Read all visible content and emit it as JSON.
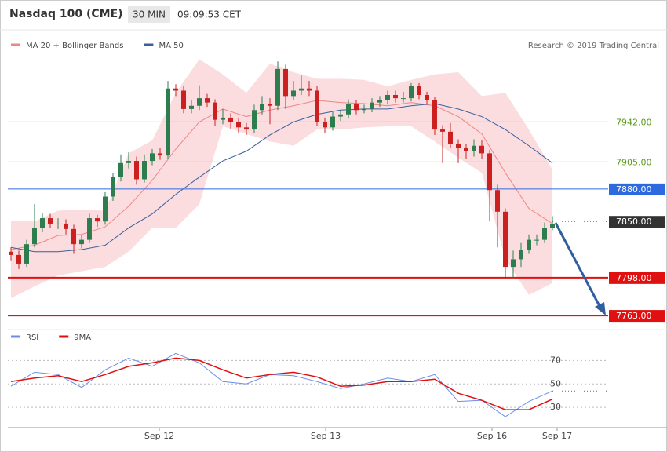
{
  "header": {
    "title": "Nasdaq 100 (CME)",
    "interval": "30 MIN",
    "time": "09:09:53 CET",
    "credit": "Research © 2019 Trading Central"
  },
  "chart_data": [
    {
      "type": "candlestick",
      "open": [
        7822,
        7819,
        7811,
        7829,
        7844,
        7853,
        7848,
        7848,
        7843,
        7829,
        7833,
        7853,
        7850,
        7873,
        7891,
        7904,
        7906,
        7889,
        7906,
        7913,
        7911,
        7973,
        7971,
        7954,
        7957,
        7964,
        7960,
        7944,
        7946,
        7942,
        7937,
        7935,
        7953,
        7959,
        7957,
        7991,
        7966,
        7971,
        7973,
        7971,
        7942,
        7937,
        7947,
        7949,
        7959,
        7953,
        7954,
        7960,
        7962,
        7967,
        7964,
        7964,
        7975,
        7967,
        7962,
        7935,
        7933,
        7922,
        7918,
        7915,
        7920,
        7913,
        7879,
        7859,
        7808,
        7815,
        7824,
        7833,
        7833,
        7844
      ],
      "high": [
        7826,
        7823,
        7833,
        7866,
        7858,
        7857,
        7853,
        7852,
        7847,
        7837,
        7857,
        7856,
        7877,
        7895,
        7912,
        7914,
        7910,
        7912,
        7917,
        7918,
        7980,
        7977,
        7975,
        7962,
        7976,
        7968,
        7963,
        7954,
        7950,
        7946,
        7941,
        7958,
        7966,
        7964,
        7998,
        7995,
        7980,
        7985,
        7980,
        7975,
        7946,
        7951,
        7953,
        7963,
        7962,
        7958,
        7964,
        7966,
        7971,
        7971,
        7970,
        7978,
        7978,
        7970,
        7965,
        7939,
        7941,
        7926,
        7922,
        7926,
        7925,
        7916,
        7884,
        7862,
        7823,
        7830,
        7838,
        7838,
        7849,
        7855
      ],
      "low": [
        7814,
        7806,
        7808,
        7826,
        7840,
        7844,
        7843,
        7838,
        7820,
        7825,
        7830,
        7845,
        7847,
        7869,
        7887,
        7899,
        7884,
        7886,
        7902,
        7907,
        7908,
        7966,
        7950,
        7950,
        7953,
        7956,
        7938,
        7940,
        7936,
        7932,
        7930,
        7932,
        7949,
        7940,
        7953,
        7954,
        7962,
        7967,
        7966,
        7938,
        7932,
        7934,
        7943,
        7945,
        7949,
        7950,
        7951,
        7956,
        7958,
        7960,
        7960,
        7961,
        7963,
        7958,
        7930,
        7904,
        7918,
        7904,
        7908,
        7910,
        7908,
        7850,
        7826,
        7797,
        7798,
        7808,
        7820,
        7828,
        7830,
        7842
      ],
      "close": [
        7819,
        7811,
        7829,
        7844,
        7853,
        7848,
        7848,
        7843,
        7829,
        7833,
        7853,
        7850,
        7873,
        7891,
        7904,
        7906,
        7889,
        7906,
        7913,
        7911,
        7973,
        7971,
        7954,
        7957,
        7964,
        7960,
        7944,
        7946,
        7942,
        7937,
        7935,
        7953,
        7959,
        7957,
        7991,
        7966,
        7971,
        7973,
        7971,
        7942,
        7937,
        7947,
        7949,
        7959,
        7953,
        7954,
        7960,
        7962,
        7967,
        7964,
        7964,
        7975,
        7967,
        7962,
        7935,
        7933,
        7922,
        7918,
        7915,
        7920,
        7913,
        7879,
        7859,
        7808,
        7815,
        7824,
        7833,
        7833,
        7844,
        7848
      ],
      "up_color": "#2e7d4f",
      "down_color": "#cc1f1f",
      "series": [
        {
          "name": "MA 20 + Bollinger Bands",
          "color": "#f08585",
          "band_color": "#fbdde0",
          "x": [
            0,
            3,
            6,
            9,
            12,
            15,
            18,
            21,
            24,
            27,
            30,
            33,
            36,
            39,
            42,
            45,
            48,
            51,
            54,
            57,
            60,
            63,
            66,
            69
          ],
          "values": [
            7824,
            7828,
            7837,
            7838,
            7845,
            7864,
            7888,
            7917,
            7942,
            7954,
            7947,
            7953,
            7957,
            7962,
            7960,
            7959,
            7957,
            7960,
            7957,
            7947,
            7931,
            7895,
            7862,
            7848
          ],
          "upper": [
            7851,
            7850,
            7860,
            7861,
            7860,
            7913,
            7925,
            7969,
            8000,
            7986,
            7969,
            7996,
            7988,
            7982,
            7982,
            7981,
            7975,
            7981,
            7986,
            7988,
            7966,
            7969,
            7935,
            7898
          ],
          "lower": [
            7779,
            7790,
            7800,
            7804,
            7808,
            7822,
            7844,
            7844,
            7866,
            7938,
            7931,
            7924,
            7920,
            7935,
            7935,
            7937,
            7938,
            7938,
            7924,
            7909,
            7895,
            7815,
            7782,
            7793
          ]
        },
        {
          "name": "MA 50",
          "color": "#3a5f9a",
          "x": [
            0,
            3,
            6,
            9,
            12,
            15,
            18,
            21,
            24,
            27,
            30,
            33,
            36,
            39,
            42,
            45,
            48,
            51,
            54,
            57,
            60,
            63,
            66,
            69
          ],
          "values": [
            7826,
            7822,
            7822,
            7824,
            7828,
            7844,
            7857,
            7875,
            7891,
            7906,
            7915,
            7930,
            7942,
            7949,
            7953,
            7954,
            7954,
            7957,
            7959,
            7954,
            7947,
            7935,
            7920,
            7904
          ]
        }
      ],
      "levels": [
        {
          "value": 7942,
          "label": "7942.00",
          "color": "#5c9a1a",
          "line": "thin",
          "boxed": false
        },
        {
          "value": 7905,
          "label": "7905.00",
          "color": "#5c9a1a",
          "line": "thin",
          "boxed": false
        },
        {
          "value": 7880,
          "label": "7880.00",
          "color": "#2d6ae0",
          "line": "thin",
          "boxed": true
        },
        {
          "value": 7850,
          "label": "7850.00",
          "color": "#333333",
          "line": "dotted",
          "boxed": true
        },
        {
          "value": 7798,
          "label": "7798.00",
          "color": "#e01010",
          "line": "thick",
          "boxed": true
        },
        {
          "value": 7763,
          "label": "7763.00",
          "color": "#e01010",
          "line": "thick",
          "boxed": true
        }
      ],
      "ylim": [
        7750,
        8004
      ],
      "xlim": [
        -0.4,
        76.1
      ],
      "xticks": [
        {
          "value": 18.9,
          "label": "Sep 12"
        },
        {
          "value": 40.1,
          "label": "Sep 13"
        },
        {
          "value": 61.3,
          "label": "Sep 16"
        },
        {
          "value": 69.6,
          "label": "Sep 17"
        }
      ]
    },
    {
      "type": "line",
      "series": [
        {
          "name": "RSI",
          "color": "#6a8ee8",
          "x": [
            0,
            3,
            6,
            9,
            12,
            15,
            18,
            21,
            24,
            27,
            30,
            33,
            36,
            39,
            42,
            45,
            48,
            51,
            54,
            57,
            60,
            63,
            66,
            69
          ],
          "values": [
            48,
            60,
            58,
            47,
            62,
            72,
            65,
            76,
            68,
            52,
            50,
            58,
            57,
            52,
            46,
            50,
            55,
            52,
            58,
            35,
            36,
            22,
            35,
            44
          ]
        },
        {
          "name": "9MA",
          "color": "#e01010",
          "x": [
            0,
            3,
            6,
            9,
            12,
            15,
            18,
            21,
            24,
            27,
            30,
            33,
            36,
            39,
            42,
            45,
            48,
            51,
            54,
            57,
            60,
            63,
            66,
            69
          ],
          "values": [
            52,
            55,
            57,
            52,
            58,
            65,
            68,
            72,
            70,
            62,
            55,
            58,
            60,
            56,
            48,
            49,
            52,
            52,
            54,
            42,
            36,
            28,
            28,
            37
          ]
        }
      ],
      "ylim": [
        16,
        83
      ],
      "yticks": [
        70,
        50,
        30
      ],
      "xlim": [
        -0.4,
        76.1
      ]
    }
  ]
}
